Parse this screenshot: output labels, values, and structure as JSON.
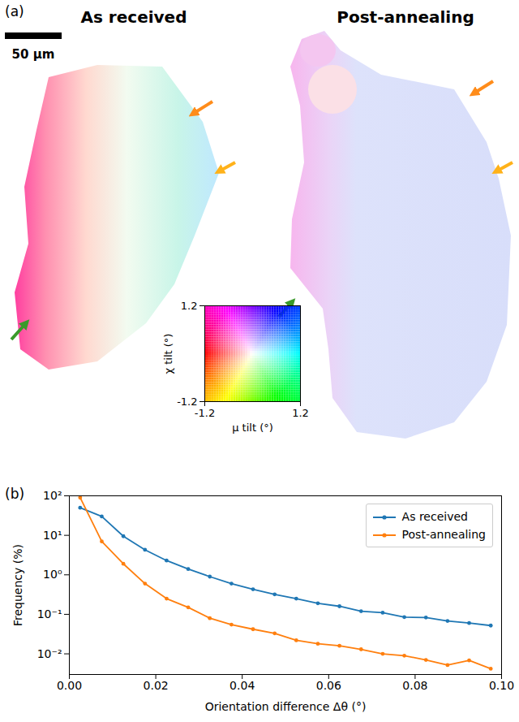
{
  "chart_data": [
    {
      "type": "colormap2d",
      "panel": "(a)",
      "titles": [
        "As received",
        "Post-annealing"
      ],
      "scale_bar": "50 μm",
      "xlabel": "μ tilt (°)",
      "ylabel": "χ tilt (°)",
      "xlim": [
        -1.2,
        1.2
      ],
      "ylim": [
        -1.2,
        1.2
      ],
      "xticks": [
        -1.2,
        1.2
      ],
      "yticks": [
        -1.2,
        1.2
      ]
    },
    {
      "type": "line",
      "panel": "(b)",
      "xlabel": "Orientation difference Δθ (°)",
      "ylabel": "Frequency (%)",
      "x": [
        0.0025,
        0.0075,
        0.0125,
        0.0175,
        0.0225,
        0.0275,
        0.0325,
        0.0375,
        0.0425,
        0.0475,
        0.0525,
        0.0575,
        0.0625,
        0.0675,
        0.0725,
        0.0775,
        0.0825,
        0.0875,
        0.0925,
        0.0975
      ],
      "series": [
        {
          "name": "As received",
          "color": "#1f77b4",
          "marker": "circle",
          "values": [
            50,
            30,
            9.5,
            4.3,
            2.3,
            1.4,
            0.9,
            0.6,
            0.43,
            0.32,
            0.25,
            0.19,
            0.16,
            0.12,
            0.11,
            0.085,
            0.083,
            0.068,
            0.06,
            0.052
          ]
        },
        {
          "name": "Post-annealing",
          "color": "#ff7f0e",
          "marker": "circle",
          "values": [
            90,
            7,
            1.9,
            0.6,
            0.25,
            0.15,
            0.08,
            0.055,
            0.042,
            0.033,
            0.022,
            0.018,
            0.016,
            0.013,
            0.01,
            0.009,
            0.007,
            0.0052,
            0.0068,
            0.0042
          ]
        }
      ],
      "xlim": [
        0,
        0.1
      ],
      "ylim": [
        0.003,
        100
      ],
      "xticks": [
        {
          "value": 0,
          "label": "0.00"
        },
        {
          "value": 0.02,
          "label": "0.02"
        },
        {
          "value": 0.04,
          "label": "0.04"
        },
        {
          "value": 0.06,
          "label": "0.06"
        },
        {
          "value": 0.08,
          "label": "0.08"
        },
        {
          "value": 0.1,
          "label": "0.10"
        }
      ],
      "yticks": [
        {
          "value": 0.01,
          "label": "10⁻²"
        },
        {
          "value": 0.1,
          "label": "10⁻¹"
        },
        {
          "value": 1,
          "label": "10⁰"
        },
        {
          "value": 10,
          "label": "10¹"
        },
        {
          "value": 100,
          "label": "10²"
        }
      ],
      "log": "y",
      "legend": "upper right"
    }
  ]
}
